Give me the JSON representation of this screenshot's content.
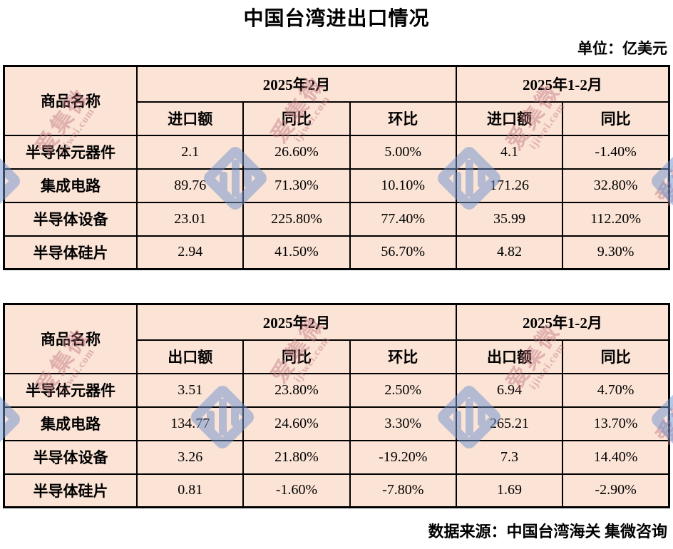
{
  "page": {
    "title": "中国台湾进出口情况",
    "unit_label": "单位：亿美元",
    "source_label": "数据来源：中国台湾海关 集微咨询"
  },
  "watermark": {
    "brand_cn": "爱集微",
    "brand_en": "ijiwei.com"
  },
  "colors": {
    "cell_background": "#fbe3d5",
    "border": "#000000",
    "watermark_blue": "#6e93cf",
    "watermark_rose": "#c0737f",
    "text": "#000000"
  },
  "chart_data": [
    {
      "type": "table",
      "name": "imports",
      "unit": "亿美元",
      "name_header": "商品名称",
      "period_headers": [
        "2025年2月",
        "2025年1-2月"
      ],
      "sub_headers": [
        "进口额",
        "同比",
        "环比",
        "进口额",
        "同比"
      ],
      "rows": [
        [
          "半导体元器件",
          "2.1",
          "26.60%",
          "5.00%",
          "4.1",
          "-1.40%"
        ],
        [
          "集成电路",
          "89.76",
          "71.30%",
          "10.10%",
          "171.26",
          "32.80%"
        ],
        [
          "半导体设备",
          "23.01",
          "225.80%",
          "77.40%",
          "35.99",
          "112.20%"
        ],
        [
          "半导体硅片",
          "2.94",
          "41.50%",
          "56.70%",
          "4.82",
          "9.30%"
        ]
      ]
    },
    {
      "type": "table",
      "name": "exports",
      "unit": "亿美元",
      "name_header": "商品名称",
      "period_headers": [
        "2025年2月",
        "2025年1-2月"
      ],
      "sub_headers": [
        "出口额",
        "同比",
        "环比",
        "出口额",
        "同比"
      ],
      "rows": [
        [
          "半导体元器件",
          "3.51",
          "23.80%",
          "2.50%",
          "6.94",
          "4.70%"
        ],
        [
          "集成电路",
          "134.77",
          "24.60%",
          "3.30%",
          "265.21",
          "13.70%"
        ],
        [
          "半导体设备",
          "3.26",
          "21.80%",
          "-19.20%",
          "7.3",
          "14.40%"
        ],
        [
          "半导体硅片",
          "0.81",
          "-1.60%",
          "-7.80%",
          "1.69",
          "-2.90%"
        ]
      ]
    }
  ]
}
